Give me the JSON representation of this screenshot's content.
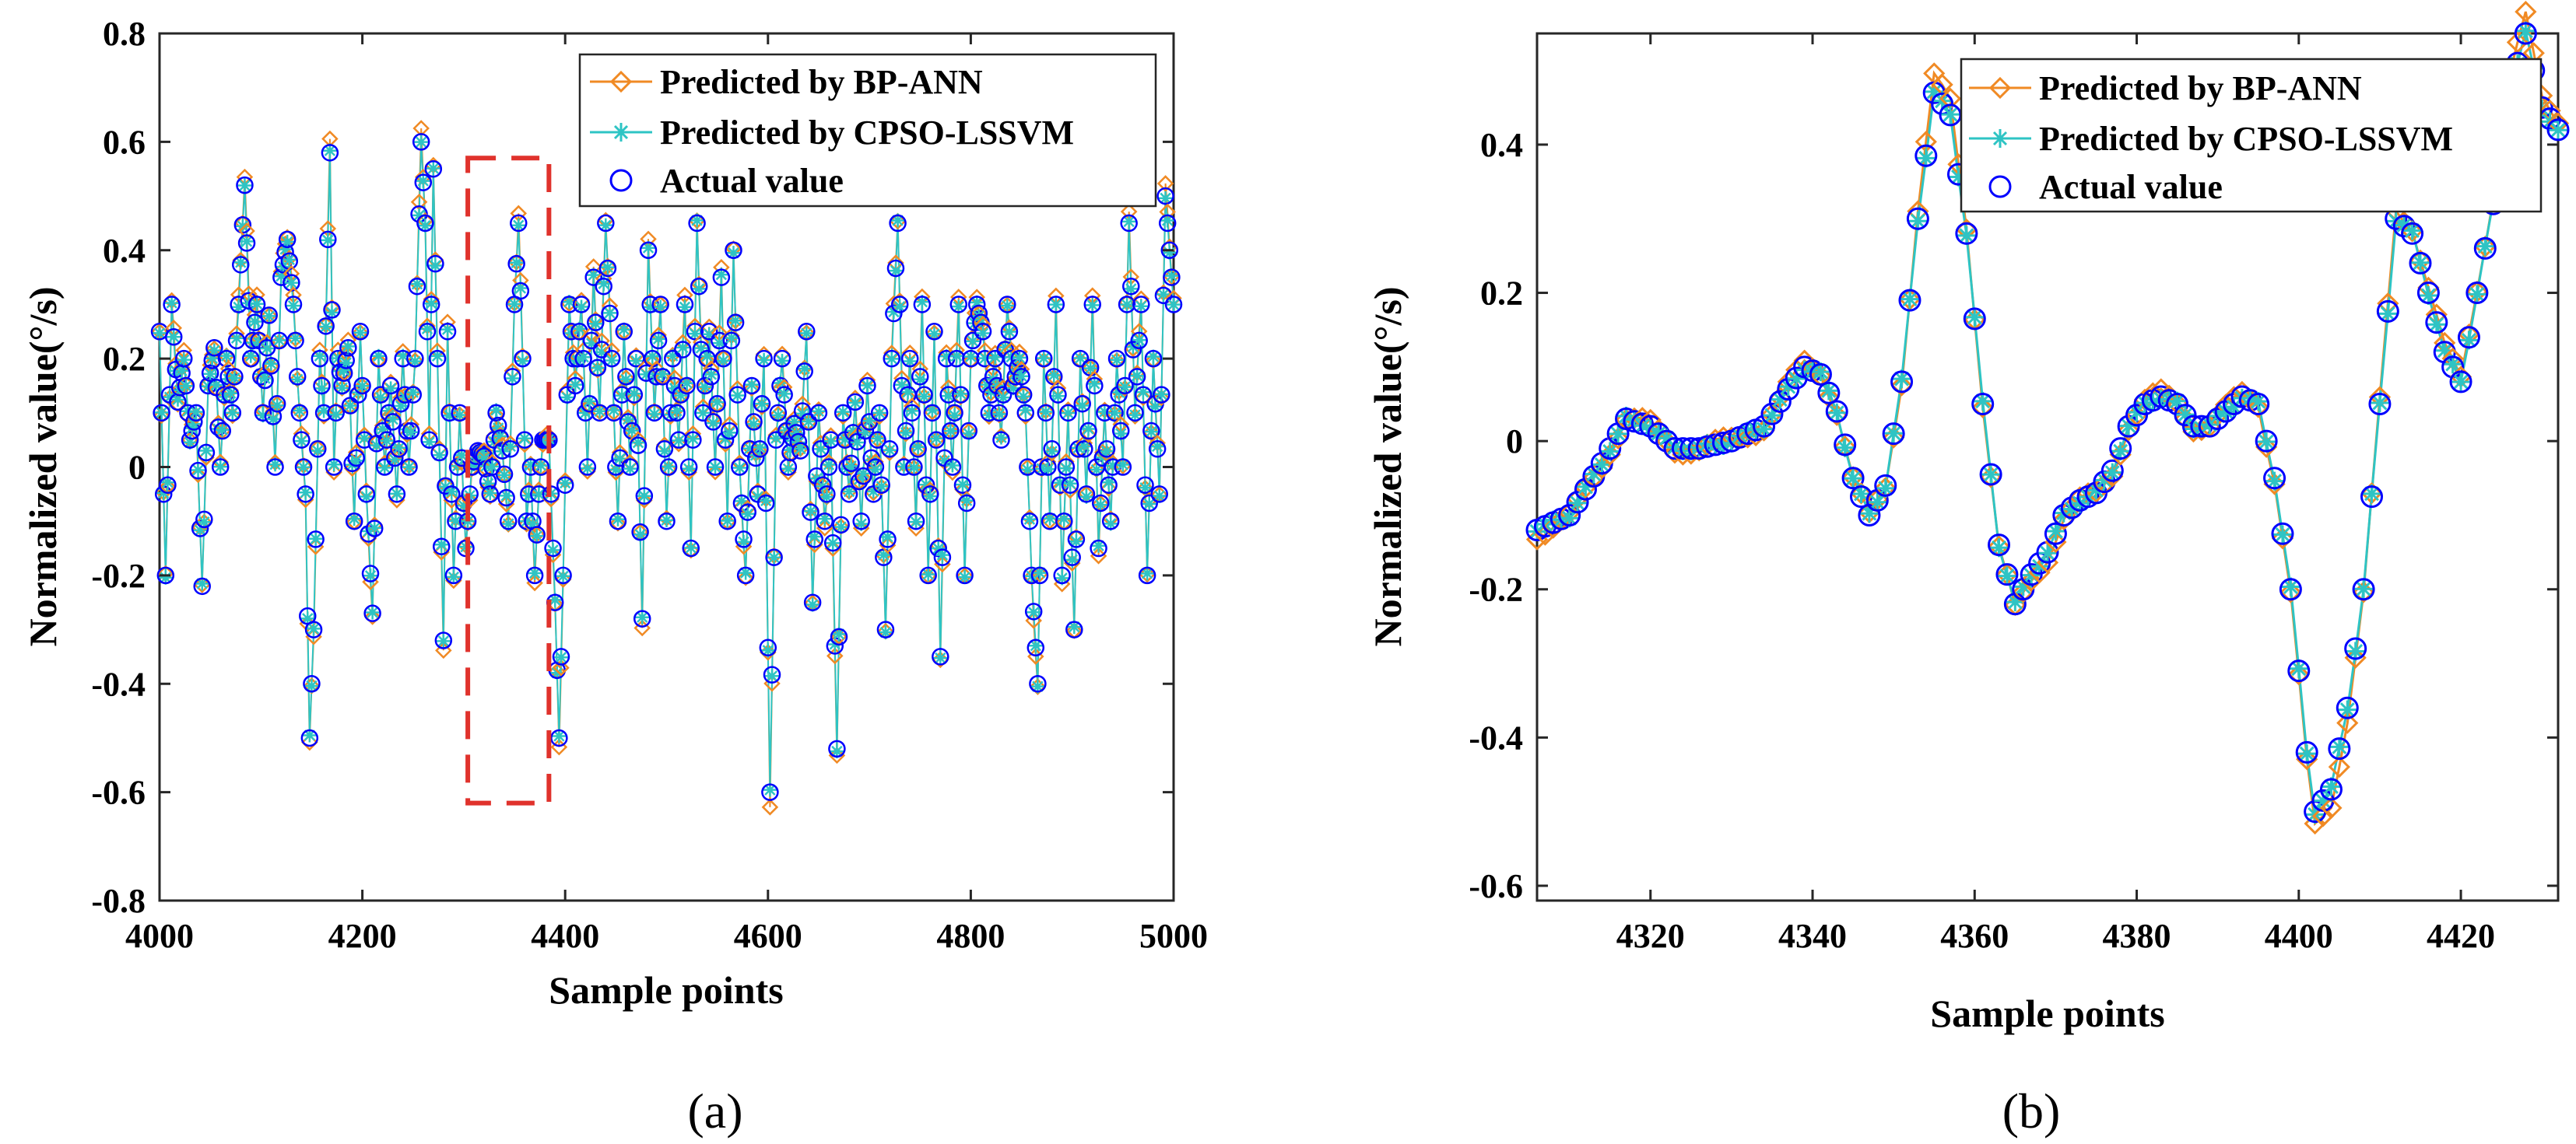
{
  "colors": {
    "bp": "#F08A24",
    "cpso": "#2EC4C4",
    "actual": "#0000FF",
    "zoom": "#E0322C"
  },
  "legend": {
    "bp": "Predicted by BP-ANN",
    "cpso": "Predicted by CPSO-LSSVM",
    "actual": "Actual value"
  },
  "chart_data": [
    {
      "type": "line",
      "panel_label": "(a)",
      "xlabel": "Sample points",
      "ylabel": "Normalized value(°/s)",
      "xlim": [
        4000,
        5000
      ],
      "ylim": [
        -0.8,
        0.8
      ],
      "xticks": [
        4000,
        4200,
        4400,
        4600,
        4800,
        5000
      ],
      "yticks": [
        -0.8,
        -0.6,
        -0.4,
        -0.2,
        0,
        0.2,
        0.4,
        0.6,
        0.8
      ],
      "zoom_box": {
        "x": [
          4304,
          4384
        ],
        "y": [
          -0.62,
          0.57
        ]
      },
      "keypoints": [
        [
          4000,
          0.25
        ],
        [
          4006,
          -0.2
        ],
        [
          4012,
          0.3
        ],
        [
          4018,
          0.12
        ],
        [
          4024,
          0.2
        ],
        [
          4030,
          0.05
        ],
        [
          4036,
          0.1
        ],
        [
          4042,
          -0.22
        ],
        [
          4048,
          0.15
        ],
        [
          4054,
          0.22
        ],
        [
          4060,
          0.0
        ],
        [
          4066,
          0.2
        ],
        [
          4072,
          0.1
        ],
        [
          4078,
          0.3
        ],
        [
          4084,
          0.52
        ],
        [
          4090,
          0.2
        ],
        [
          4096,
          0.3
        ],
        [
          4102,
          0.1
        ],
        [
          4108,
          0.28
        ],
        [
          4114,
          0.0
        ],
        [
          4120,
          0.35
        ],
        [
          4126,
          0.42
        ],
        [
          4132,
          0.3
        ],
        [
          4138,
          0.1
        ],
        [
          4144,
          -0.05
        ],
        [
          4148,
          -0.5
        ],
        [
          4152,
          -0.3
        ],
        [
          4158,
          0.2
        ],
        [
          4162,
          0.1
        ],
        [
          4168,
          0.58
        ],
        [
          4172,
          0.0
        ],
        [
          4176,
          0.2
        ],
        [
          4180,
          0.15
        ],
        [
          4186,
          0.22
        ],
        [
          4192,
          -0.1
        ],
        [
          4198,
          0.25
        ],
        [
          4204,
          -0.05
        ],
        [
          4210,
          -0.27
        ],
        [
          4216,
          0.2
        ],
        [
          4222,
          0.0
        ],
        [
          4228,
          0.15
        ],
        [
          4234,
          -0.05
        ],
        [
          4240,
          0.2
        ],
        [
          4246,
          0.0
        ],
        [
          4252,
          0.2
        ],
        [
          4258,
          0.6
        ],
        [
          4262,
          0.45
        ],
        [
          4266,
          0.05
        ],
        [
          4270,
          0.55
        ],
        [
          4274,
          0.2
        ],
        [
          4280,
          -0.32
        ],
        [
          4284,
          0.25
        ],
        [
          4290,
          -0.2
        ],
        [
          4296,
          0.1
        ],
        [
          4302,
          -0.15
        ],
        [
          4308,
          0.0
        ],
        [
          4314,
          0.03
        ],
        [
          4320,
          0.02
        ],
        [
          4326,
          -0.05
        ],
        [
          4332,
          0.1
        ],
        [
          4338,
          0.03
        ],
        [
          4344,
          -0.1
        ],
        [
          4350,
          0.3
        ],
        [
          4354,
          0.45
        ],
        [
          4358,
          0.2
        ],
        [
          4362,
          -0.1
        ],
        [
          4366,
          0.0
        ],
        [
          4370,
          -0.2
        ],
        [
          4374,
          -0.05
        ],
        [
          4378,
          0.05
        ],
        [
          4384,
          0.05
        ],
        [
          4390,
          -0.25
        ],
        [
          4394,
          -0.5
        ],
        [
          4398,
          -0.2
        ],
        [
          4404,
          0.3
        ],
        [
          4410,
          0.15
        ],
        [
          4416,
          0.3
        ],
        [
          4422,
          0.0
        ],
        [
          4428,
          0.35
        ],
        [
          4434,
          0.1
        ],
        [
          4440,
          0.45
        ],
        [
          4446,
          0.2
        ],
        [
          4452,
          -0.1
        ],
        [
          4458,
          0.25
        ],
        [
          4464,
          0.0
        ],
        [
          4470,
          0.2
        ],
        [
          4476,
          -0.28
        ],
        [
          4482,
          0.4
        ],
        [
          4488,
          0.1
        ],
        [
          4494,
          0.3
        ],
        [
          4500,
          -0.1
        ],
        [
          4506,
          0.2
        ],
        [
          4512,
          0.05
        ],
        [
          4518,
          0.3
        ],
        [
          4524,
          -0.15
        ],
        [
          4530,
          0.45
        ],
        [
          4536,
          0.1
        ],
        [
          4542,
          0.25
        ],
        [
          4548,
          0.0
        ],
        [
          4554,
          0.35
        ],
        [
          4560,
          -0.1
        ],
        [
          4566,
          0.4
        ],
        [
          4572,
          0.0
        ],
        [
          4578,
          -0.2
        ],
        [
          4584,
          0.15
        ],
        [
          4590,
          -0.05
        ],
        [
          4596,
          0.2
        ],
        [
          4602,
          -0.6
        ],
        [
          4608,
          0.05
        ],
        [
          4614,
          0.2
        ],
        [
          4620,
          0.0
        ],
        [
          4626,
          0.08
        ],
        [
          4632,
          0.03
        ],
        [
          4638,
          0.25
        ],
        [
          4644,
          -0.25
        ],
        [
          4650,
          0.1
        ],
        [
          4656,
          -0.1
        ],
        [
          4662,
          0.05
        ],
        [
          4668,
          -0.52
        ],
        [
          4674,
          0.1
        ],
        [
          4680,
          -0.05
        ],
        [
          4686,
          0.12
        ],
        [
          4692,
          -0.1
        ],
        [
          4698,
          0.15
        ],
        [
          4704,
          -0.05
        ],
        [
          4710,
          0.1
        ],
        [
          4716,
          -0.3
        ],
        [
          4722,
          0.2
        ],
        [
          4728,
          0.45
        ],
        [
          4734,
          0.0
        ],
        [
          4740,
          0.2
        ],
        [
          4746,
          -0.1
        ],
        [
          4752,
          0.3
        ],
        [
          4758,
          -0.2
        ],
        [
          4764,
          0.25
        ],
        [
          4770,
          -0.35
        ],
        [
          4776,
          0.2
        ],
        [
          4782,
          0.0
        ],
        [
          4788,
          0.3
        ],
        [
          4794,
          -0.2
        ],
        [
          4800,
          0.2
        ],
        [
          4806,
          0.3
        ],
        [
          4812,
          0.25
        ],
        [
          4818,
          0.1
        ],
        [
          4824,
          0.2
        ],
        [
          4830,
          0.05
        ],
        [
          4836,
          0.3
        ],
        [
          4842,
          0.15
        ],
        [
          4848,
          0.2
        ],
        [
          4854,
          0.1
        ],
        [
          4860,
          -0.2
        ],
        [
          4866,
          -0.4
        ],
        [
          4872,
          0.2
        ],
        [
          4878,
          -0.1
        ],
        [
          4884,
          0.3
        ],
        [
          4890,
          -0.2
        ],
        [
          4896,
          0.1
        ],
        [
          4902,
          -0.3
        ],
        [
          4908,
          0.2
        ],
        [
          4914,
          -0.05
        ],
        [
          4920,
          0.3
        ],
        [
          4926,
          -0.15
        ],
        [
          4932,
          0.1
        ],
        [
          4938,
          -0.1
        ],
        [
          4944,
          0.2
        ],
        [
          4950,
          0.0
        ],
        [
          4956,
          0.45
        ],
        [
          4962,
          0.1
        ],
        [
          4968,
          0.3
        ],
        [
          4974,
          -0.2
        ],
        [
          4980,
          0.2
        ],
        [
          4986,
          -0.05
        ],
        [
          4992,
          0.5
        ],
        [
          5000,
          0.3
        ]
      ]
    },
    {
      "type": "line",
      "panel_label": "(b)",
      "xlabel": "Sample points",
      "ylabel": "Normalized value(°/s)",
      "xlim": [
        4306,
        4432
      ],
      "ylim": [
        -0.62,
        0.55
      ],
      "xticks": [
        4320,
        4340,
        4360,
        4380,
        4400,
        4420
      ],
      "yticks": [
        -0.6,
        -0.4,
        -0.2,
        0,
        0.2,
        0.4
      ],
      "keypoints": [
        [
          4306,
          -0.12
        ],
        [
          4310,
          -0.1
        ],
        [
          4314,
          -0.03
        ],
        [
          4317,
          0.03
        ],
        [
          4320,
          0.02
        ],
        [
          4323,
          -0.01
        ],
        [
          4326,
          -0.01
        ],
        [
          4330,
          0.0
        ],
        [
          4334,
          0.02
        ],
        [
          4337,
          0.07
        ],
        [
          4339,
          0.1
        ],
        [
          4341,
          0.09
        ],
        [
          4343,
          0.04
        ],
        [
          4345,
          -0.05
        ],
        [
          4347,
          -0.1
        ],
        [
          4349,
          -0.06
        ],
        [
          4351,
          0.08
        ],
        [
          4353,
          0.3
        ],
        [
          4355,
          0.47
        ],
        [
          4357,
          0.44
        ],
        [
          4359,
          0.28
        ],
        [
          4361,
          0.05
        ],
        [
          4363,
          -0.14
        ],
        [
          4365,
          -0.22
        ],
        [
          4367,
          -0.18
        ],
        [
          4369,
          -0.15
        ],
        [
          4371,
          -0.1
        ],
        [
          4373,
          -0.08
        ],
        [
          4375,
          -0.07
        ],
        [
          4377,
          -0.04
        ],
        [
          4379,
          0.02
        ],
        [
          4381,
          0.05
        ],
        [
          4383,
          0.06
        ],
        [
          4385,
          0.05
        ],
        [
          4387,
          0.02
        ],
        [
          4389,
          0.02
        ],
        [
          4391,
          0.04
        ],
        [
          4393,
          0.06
        ],
        [
          4395,
          0.05
        ],
        [
          4397,
          -0.05
        ],
        [
          4399,
          -0.2
        ],
        [
          4401,
          -0.42
        ],
        [
          4402,
          -0.5
        ],
        [
          4404,
          -0.47
        ],
        [
          4406,
          -0.36
        ],
        [
          4408,
          -0.2
        ],
        [
          4410,
          0.05
        ],
        [
          4412,
          0.3
        ],
        [
          4414,
          0.28
        ],
        [
          4416,
          0.2
        ],
        [
          4418,
          0.12
        ],
        [
          4420,
          0.08
        ],
        [
          4422,
          0.2
        ],
        [
          4424,
          0.32
        ],
        [
          4426,
          0.47
        ],
        [
          4428,
          0.55
        ],
        [
          4430,
          0.45
        ],
        [
          4432,
          0.42
        ]
      ]
    }
  ]
}
